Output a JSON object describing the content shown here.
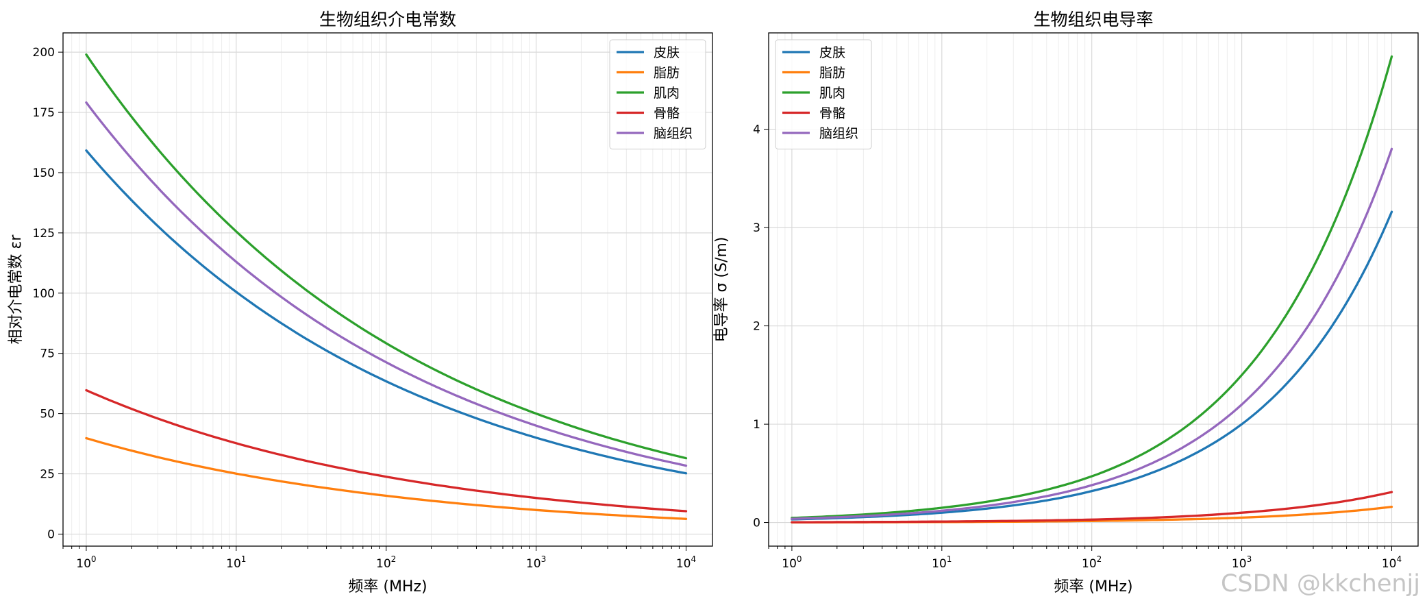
{
  "watermark": "CSDN @kkchenjj",
  "series_colors": [
    "#1f77b4",
    "#ff7f0e",
    "#2ca02c",
    "#d62728",
    "#9467bd"
  ],
  "chart_data": [
    {
      "type": "line",
      "title": "生物组织介电常数",
      "xlabel": "频率 (MHz)",
      "ylabel": "相对介电常数 εr",
      "xscale": "log",
      "xlim": [
        0.7,
        15000
      ],
      "ylim": [
        -5,
        208
      ],
      "x_ticks": [
        1,
        10,
        100,
        1000,
        10000
      ],
      "x_tick_labels": [
        {
          "base": "10",
          "exp": "0"
        },
        {
          "base": "10",
          "exp": "1"
        },
        {
          "base": "10",
          "exp": "2"
        },
        {
          "base": "10",
          "exp": "3"
        },
        {
          "base": "10",
          "exp": "4"
        }
      ],
      "y_ticks": [
        0,
        25,
        50,
        75,
        100,
        125,
        150,
        175,
        200
      ],
      "y_tick_labels": [
        "0",
        "25",
        "50",
        "75",
        "100",
        "125",
        "150",
        "175",
        "200"
      ],
      "grid": true,
      "legend_position": "upper right",
      "x": [
        1,
        10,
        100,
        1000,
        10000
      ],
      "series": [
        {
          "name": "皮肤",
          "values": [
            159.2,
            100.5,
            63.4,
            40.0,
            25.2
          ]
        },
        {
          "name": "脂肪",
          "values": [
            39.8,
            25.1,
            15.9,
            10.0,
            6.3
          ]
        },
        {
          "name": "肌肉",
          "values": [
            199.0,
            125.6,
            79.2,
            50.0,
            31.5
          ]
        },
        {
          "name": "骨骼",
          "values": [
            59.7,
            37.7,
            23.8,
            15.0,
            9.5
          ]
        },
        {
          "name": "脑组织",
          "values": [
            179.1,
            113.0,
            71.3,
            45.0,
            28.4
          ]
        }
      ]
    },
    {
      "type": "line",
      "title": "生物组织电导率",
      "xlabel": "频率 (MHz)",
      "ylabel": "电导率 σ (S/m)",
      "xscale": "log",
      "xlim": [
        0.7,
        15000
      ],
      "ylim": [
        -0.24,
        4.98
      ],
      "x_ticks": [
        1,
        10,
        100,
        1000,
        10000
      ],
      "x_tick_labels": [
        {
          "base": "10",
          "exp": "0"
        },
        {
          "base": "10",
          "exp": "1"
        },
        {
          "base": "10",
          "exp": "2"
        },
        {
          "base": "10",
          "exp": "3"
        },
        {
          "base": "10",
          "exp": "4"
        }
      ],
      "y_ticks": [
        0,
        1,
        2,
        3,
        4
      ],
      "y_tick_labels": [
        "0",
        "1",
        "2",
        "3",
        "4"
      ],
      "grid": true,
      "legend_position": "upper left",
      "x": [
        1,
        10,
        100,
        1000,
        10000
      ],
      "series": [
        {
          "name": "皮肤",
          "values": [
            0.032,
            0.1,
            0.32,
            1.0,
            3.16
          ]
        },
        {
          "name": "脂肪",
          "values": [
            0.0016,
            0.005,
            0.016,
            0.05,
            0.16
          ]
        },
        {
          "name": "肌肉",
          "values": [
            0.047,
            0.15,
            0.47,
            1.5,
            4.74
          ]
        },
        {
          "name": "骨骼",
          "values": [
            0.003,
            0.01,
            0.03,
            0.1,
            0.31
          ]
        },
        {
          "name": "脑组织",
          "values": [
            0.038,
            0.12,
            0.38,
            1.2,
            3.8
          ]
        }
      ]
    }
  ]
}
